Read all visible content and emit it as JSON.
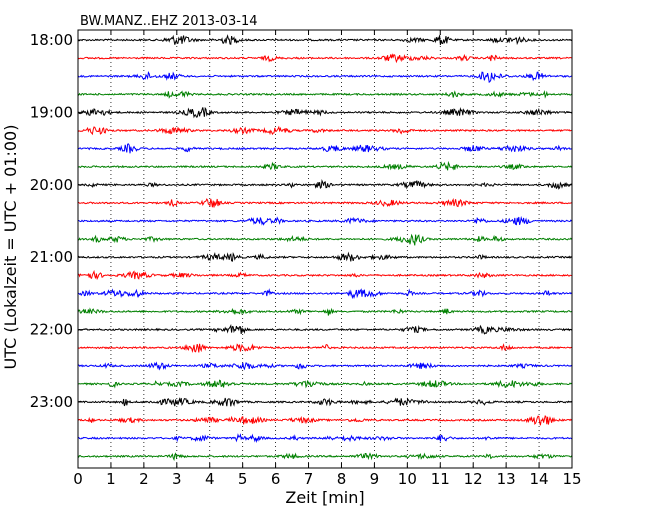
{
  "chart_data": {
    "type": "line",
    "title": "BW.MANZ..EHZ  2013-03-14",
    "xlabel": "Zeit  [min]",
    "ylabel": "UTC (Lokalzeit = UTC + 01:00)",
    "xlim": [
      0,
      15
    ],
    "x_ticks": [
      "0",
      "1",
      "2",
      "3",
      "4",
      "5",
      "6",
      "7",
      "8",
      "9",
      "10",
      "11",
      "12",
      "13",
      "14",
      "15"
    ],
    "y_tick_labels": [
      "18:00",
      "19:00",
      "20:00",
      "21:00",
      "22:00",
      "23:00"
    ],
    "grid": "vertical-dotted",
    "trace_colors": [
      "#000000",
      "#ff0000",
      "#0000ff",
      "#008000"
    ],
    "trace_start_times": [
      "18:00",
      "18:15",
      "18:30",
      "18:45",
      "19:00",
      "19:15",
      "19:30",
      "19:45",
      "20:00",
      "20:15",
      "20:30",
      "20:45",
      "21:00",
      "21:15",
      "21:30",
      "21:45",
      "22:00",
      "22:15",
      "22:30",
      "22:45",
      "23:00",
      "23:15",
      "23:30",
      "23:45"
    ],
    "trace_minutes": 15
  }
}
